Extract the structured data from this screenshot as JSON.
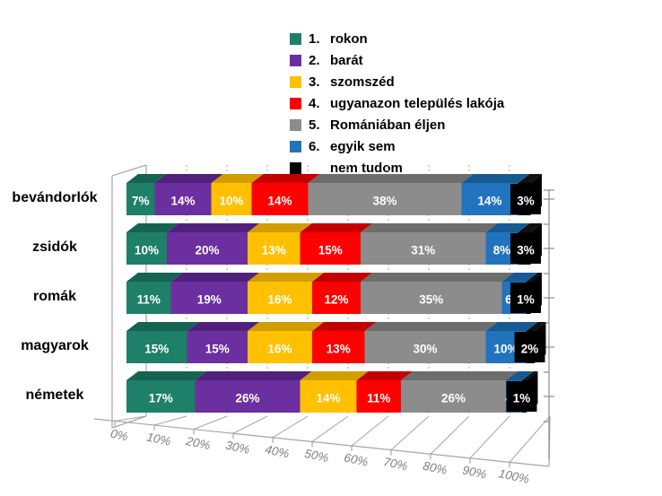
{
  "chart_data": {
    "type": "bar",
    "variant": "3d-horizontal-100pct-stacked",
    "title": "",
    "categories": [
      "bevándorlók",
      "zsidók",
      "romák",
      "magyarok",
      "németek"
    ],
    "series": [
      {
        "number": "1.",
        "name": "rokon",
        "color": "#1E8068",
        "top_color": "#156350",
        "values": [
          7,
          10,
          11,
          15,
          17
        ]
      },
      {
        "number": "2.",
        "name": "barát",
        "color": "#6B2FA0",
        "top_color": "#50217B",
        "values": [
          14,
          20,
          19,
          15,
          26
        ]
      },
      {
        "number": "3.",
        "name": "szomszéd",
        "color": "#FFC000",
        "top_color": "#D29D00",
        "values": [
          10,
          13,
          16,
          16,
          14
        ]
      },
      {
        "number": "4.",
        "name": "ugyanazon település lakója",
        "color": "#FE0000",
        "top_color": "#C30000",
        "values": [
          14,
          15,
          12,
          13,
          11
        ]
      },
      {
        "number": "5.",
        "name": "Romániában éljen",
        "color": "#8C8C8C",
        "top_color": "#6D6D6D",
        "values": [
          38,
          31,
          35,
          30,
          26
        ]
      },
      {
        "number": "6.",
        "name": "egyik sem",
        "color": "#2273BE",
        "top_color": "#175A92",
        "values": [
          14,
          8,
          6,
          10,
          4
        ]
      },
      {
        "number": "",
        "name": "nem tudom",
        "color": "#000000",
        "top_color": "#111111",
        "values": [
          3,
          3,
          1,
          2,
          1
        ]
      }
    ],
    "value_suffix": "%",
    "x_ticks": [
      "0%",
      "10%",
      "20%",
      "30%",
      "40%",
      "50%",
      "60%",
      "70%",
      "80%",
      "90%",
      "100%"
    ],
    "xlim": [
      0,
      100
    ],
    "legend_position": "top-center",
    "gridlines": "dashed-vertical",
    "chrome_color": "#A6A6A6",
    "axis_text_color": "#7F7F7F"
  }
}
